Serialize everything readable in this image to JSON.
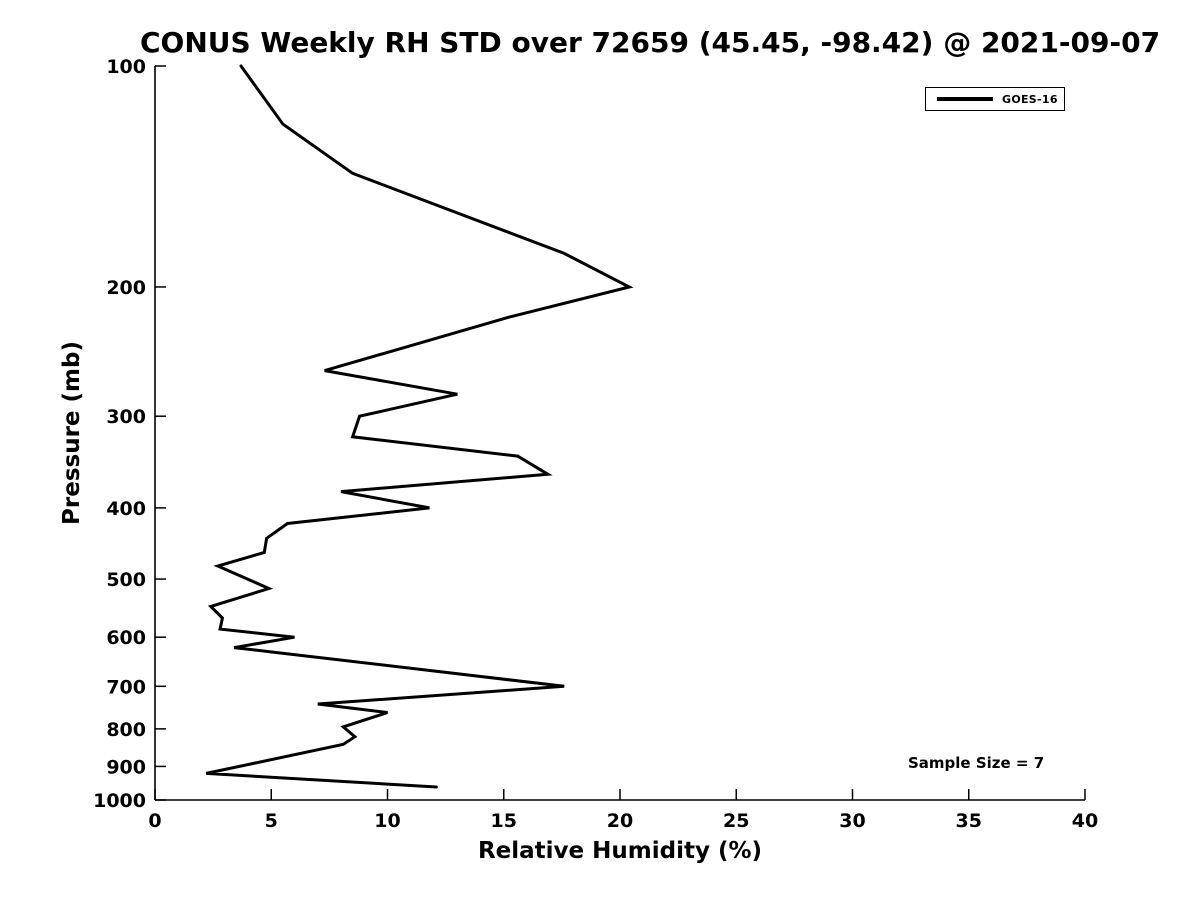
{
  "figure": {
    "background": "#ffffff",
    "text_color": "#000000"
  },
  "chart_data": {
    "type": "line",
    "title": "CONUS Weekly RH STD over 72659 (45.45, -98.42) @ 2021-09-07",
    "xlabel": "Relative Humidity (%)",
    "ylabel": "Pressure (mb)",
    "xlim": [
      0,
      40
    ],
    "ylim": [
      100,
      1000
    ],
    "yscale": "log",
    "y_axis_orientation": "inverted (100 mb at top, 1000 mb at bottom)",
    "xticks": [
      0,
      5,
      10,
      15,
      20,
      25,
      30,
      35,
      40
    ],
    "yticks": [
      100,
      200,
      300,
      400,
      500,
      600,
      700,
      800,
      900,
      1000
    ],
    "grid": false,
    "legend": {
      "position": "top-right",
      "entries": [
        {
          "label": "GOES-16",
          "color": "#000000"
        }
      ]
    },
    "annotation": {
      "text": "Sample Size = 7"
    },
    "series": [
      {
        "name": "GOES-16",
        "color": "#000000",
        "x_rh_percent": [
          3.7,
          5.5,
          8.5,
          17.6,
          20.4,
          15.2,
          7.3,
          13.0,
          8.8,
          8.5,
          15.6,
          16.9,
          8.0,
          11.8,
          5.7,
          4.8,
          4.7,
          2.7,
          4.9,
          2.4,
          2.9,
          2.8,
          6.0,
          3.4,
          5.3,
          17.6,
          7.0,
          10.0,
          8.1,
          8.6,
          8.1,
          2.2,
          12.1
        ],
        "y_pressure_mb": [
          100,
          120,
          140,
          180,
          200,
          220,
          260,
          280,
          300,
          320,
          340,
          360,
          380,
          400,
          420,
          440,
          460,
          480,
          515,
          545,
          565,
          585,
          600,
          620,
          630,
          700,
          740,
          760,
          795,
          820,
          840,
          920,
          960
        ]
      }
    ]
  }
}
